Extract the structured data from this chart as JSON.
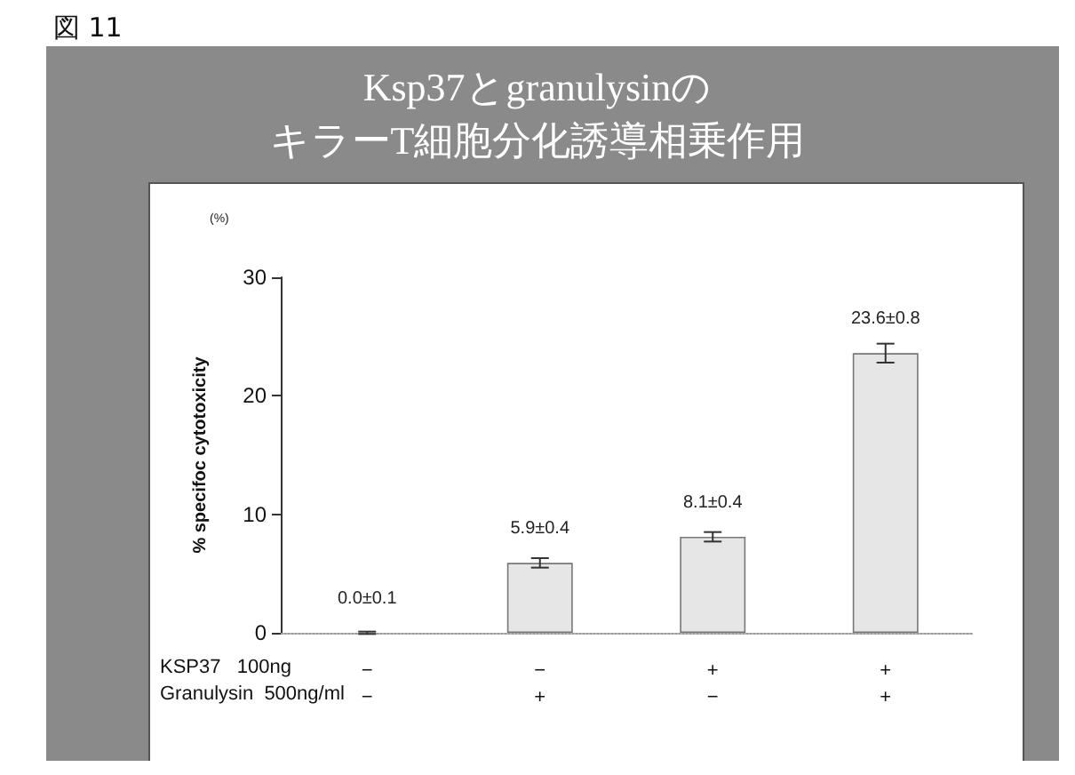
{
  "chart_data": {
    "type": "bar",
    "title": "Ksp37とgranulysinの",
    "subtitle": "キラーT細胞分化誘導相乗作用",
    "ylabel": "% specifoc cytotoxicity",
    "annotations": [
      "図 11",
      "(%)",
      "KSP37   100ng",
      "Granulysin  500ng/ml"
    ],
    "categories": [
      "−\n−",
      "−\n+",
      "+\n−",
      "+\n+"
    ],
    "values": [
      0.0,
      5.9,
      8.1,
      23.6
    ],
    "errors": [
      0.1,
      0.4,
      0.4,
      0.8
    ],
    "value_labels": [
      "0.0±0.1",
      "5.9±0.4",
      "8.1±0.4",
      "23.6±0.8"
    ],
    "color": "#e6e6e6",
    "ylim": [
      0,
      30
    ],
    "yticks": [
      0,
      10,
      20,
      30
    ],
    "grid": false
  }
}
